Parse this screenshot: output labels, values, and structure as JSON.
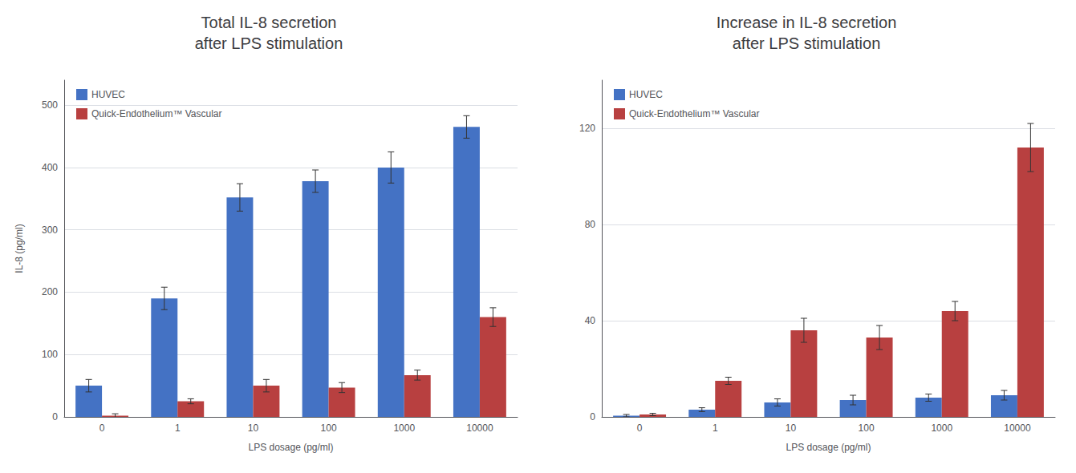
{
  "chart_data": [
    {
      "type": "bar",
      "title": "Total IL-8 secretion\nafter LPS stimulation",
      "xlabel": "LPS dosage (pg/ml)",
      "ylabel": "IL-8 (pg/ml)",
      "categories": [
        "0",
        "1",
        "10",
        "100",
        "1000",
        "10000"
      ],
      "series": [
        {
          "name": "HUVEC",
          "color": "#4472C4",
          "values": [
            50,
            190,
            352,
            378,
            400,
            465
          ],
          "errors": [
            10,
            18,
            22,
            18,
            25,
            18
          ]
        },
        {
          "name": "Quick-Endothelium™ Vascular",
          "color": "#B84040",
          "values": [
            2,
            25,
            50,
            47,
            67,
            160
          ],
          "errors": [
            3,
            4,
            10,
            8,
            8,
            15
          ]
        }
      ],
      "ylim": [
        0,
        540
      ],
      "yticks": [
        0,
        100,
        200,
        300,
        400,
        500
      ],
      "grid": true,
      "legend": "upper left"
    },
    {
      "type": "bar",
      "title": "Increase in IL-8 secretion\nafter LPS stimulation",
      "xlabel": "LPS dosage (pg/ml)",
      "categories": [
        "0",
        "1",
        "10",
        "100",
        "1000",
        "10000"
      ],
      "series": [
        {
          "name": "HUVEC",
          "color": "#4472C4",
          "values": [
            0.5,
            3,
            6,
            7,
            8,
            9
          ],
          "errors": [
            0.5,
            0.8,
            1.5,
            2,
            1.5,
            2
          ]
        },
        {
          "name": "Quick-Endothelium™ Vascular",
          "color": "#B84040",
          "values": [
            1,
            15,
            36,
            33,
            44,
            112
          ],
          "errors": [
            0.5,
            1.5,
            5,
            5,
            4,
            10
          ]
        }
      ],
      "ylim": [
        0,
        140
      ],
      "yticks": [
        0,
        40,
        80,
        120
      ],
      "grid": true,
      "legend": "upper left"
    }
  ]
}
